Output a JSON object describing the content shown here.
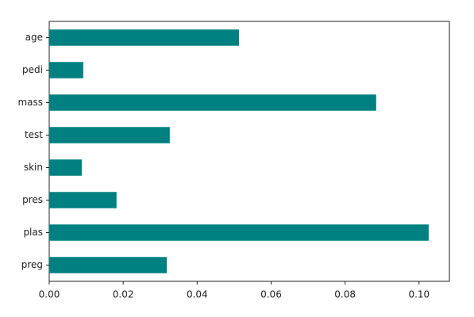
{
  "chart_data": {
    "type": "barh",
    "categories": [
      "preg",
      "plas",
      "pres",
      "skin",
      "test",
      "mass",
      "pedi",
      "age"
    ],
    "values": [
      0.0318,
      0.1026,
      0.0182,
      0.0088,
      0.0326,
      0.0884,
      0.0092,
      0.0513
    ],
    "color": "#008080",
    "xlim": [
      0,
      0.1082
    ],
    "xticks": [
      {
        "value": 0,
        "label": "0.00"
      },
      {
        "value": 0.02,
        "label": "0.02"
      },
      {
        "value": 0.04,
        "label": "0.04"
      },
      {
        "value": 0.06,
        "label": "0.06"
      },
      {
        "value": 0.08,
        "label": "0.08"
      },
      {
        "value": 0.1,
        "label": "0.10"
      }
    ]
  }
}
